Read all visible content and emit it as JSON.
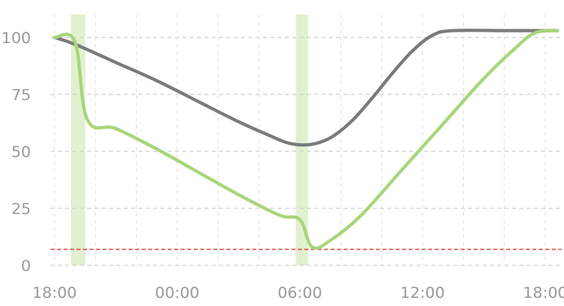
{
  "chart_data": {
    "type": "line",
    "title": "",
    "xlabel": "",
    "ylabel": "",
    "x_ticks": [
      {
        "t": 0,
        "label": "18:00"
      },
      {
        "t": 6,
        "label": "00:00"
      },
      {
        "t": 12,
        "label": "06:00"
      },
      {
        "t": 18,
        "label": "12:00"
      },
      {
        "t": 24,
        "label": "18:00"
      }
    ],
    "xlim": [
      -0.2,
      24.8
    ],
    "ylim": [
      0,
      110
    ],
    "y_ticks": [
      0,
      25,
      50,
      75,
      100
    ],
    "grid": true,
    "threshold": {
      "value": 7,
      "color": "#e05a5a"
    },
    "highlight_bands": [
      {
        "start": 0.8,
        "end": 1.5,
        "color": "#c9e6a8"
      },
      {
        "start": 11.8,
        "end": 12.4,
        "color": "#c9e6a8"
      }
    ],
    "series": [
      {
        "color": "#7a7a7a",
        "points": [
          [
            0,
            100
          ],
          [
            1,
            97
          ],
          [
            3,
            89
          ],
          [
            5,
            81
          ],
          [
            7,
            72
          ],
          [
            9,
            63
          ],
          [
            10.5,
            57
          ],
          [
            11.5,
            53.5
          ],
          [
            12.5,
            53
          ],
          [
            13.5,
            56
          ],
          [
            14.5,
            63
          ],
          [
            15.5,
            73
          ],
          [
            16.5,
            84
          ],
          [
            17.5,
            94
          ],
          [
            18.5,
            101
          ],
          [
            19.5,
            103
          ],
          [
            22,
            103
          ],
          [
            24.6,
            103
          ]
        ]
      },
      {
        "color": "#a8d57b",
        "points": [
          [
            0,
            100
          ],
          [
            1,
            98
          ],
          [
            1.6,
            64
          ],
          [
            3,
            60
          ],
          [
            5,
            51
          ],
          [
            7,
            41
          ],
          [
            9,
            31
          ],
          [
            11,
            22
          ],
          [
            12,
            20
          ],
          [
            12.6,
            8
          ],
          [
            13.5,
            11
          ],
          [
            15,
            22
          ],
          [
            17,
            42
          ],
          [
            19,
            62
          ],
          [
            21,
            82
          ],
          [
            22.5,
            95
          ],
          [
            23.5,
            102
          ],
          [
            24.6,
            103
          ]
        ]
      }
    ]
  }
}
